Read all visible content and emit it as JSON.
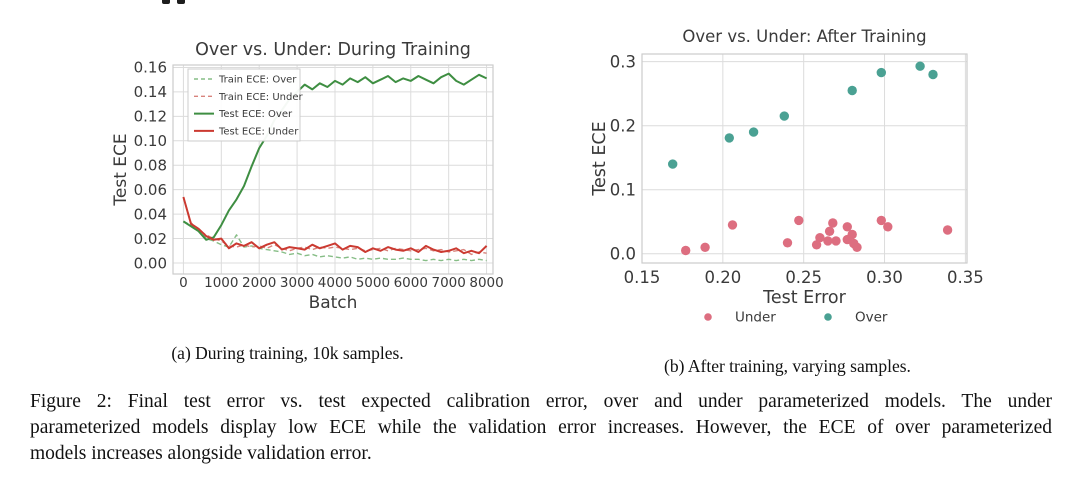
{
  "figure": {
    "caption_a": "(a) During training, 10k samples.",
    "caption_b": "(b) After training, varying samples.",
    "caption_line1": "Figure 2: Final test error vs. test expected calibration error, over and under parameterized models. The under",
    "caption_line2": "parameterized models display low ECE while the validation error increases. However, the ECE of over parameterized",
    "caption_line3": "models increases alongside validation error."
  },
  "colors": {
    "test_over_green": "#3e8e42",
    "train_over_green": "#86bd86",
    "test_under_red": "#cb3a31",
    "train_under_red": "#d8837c",
    "scatter_under_pink": "#dd6e80",
    "scatter_over_teal": "#4aa193",
    "grid": "#dcdcdc",
    "spine": "#cccccc",
    "text": "#3a3a3a"
  },
  "chart_data": [
    {
      "type": "line",
      "title": "Over vs. Under: During Training",
      "xlabel": "Batch",
      "ylabel": "Test ECE",
      "xlim": [
        -275,
        8170
      ],
      "ylim": [
        -0.009,
        0.162
      ],
      "grid": true,
      "legend_position": "upper left",
      "x_ticks": [
        0,
        1000,
        2000,
        3000,
        4000,
        5000,
        6000,
        7000,
        8000
      ],
      "x_tick_labels": [
        "0",
        "1000",
        "2000",
        "3000",
        "4000",
        "5000",
        "6000",
        "7000",
        "8000"
      ],
      "y_ticks": [
        0.0,
        0.02,
        0.04,
        0.06,
        0.08,
        0.1,
        0.12,
        0.14,
        0.16
      ],
      "y_tick_labels": [
        "0.00",
        "0.02",
        "0.04",
        "0.06",
        "0.08",
        "0.10",
        "0.12",
        "0.14",
        "0.16"
      ],
      "x": [
        0,
        200,
        400,
        600,
        800,
        1000,
        1200,
        1400,
        1600,
        1800,
        2000,
        2200,
        2400,
        2600,
        2800,
        3000,
        3200,
        3400,
        3600,
        3800,
        4000,
        4200,
        4400,
        4600,
        4800,
        5000,
        5200,
        5400,
        5600,
        5800,
        6000,
        6200,
        6400,
        6600,
        6800,
        7000,
        7200,
        7400,
        7600,
        7800,
        8000
      ],
      "series": [
        {
          "name": "Train ECE: Over",
          "color": "#86bd86",
          "dash": true,
          "values": [
            0.034,
            0.031,
            0.026,
            0.02,
            0.018,
            0.015,
            0.013,
            0.023,
            0.013,
            0.014,
            0.012,
            0.011,
            0.01,
            0.009,
            0.007,
            0.008,
            0.006,
            0.007,
            0.005,
            0.006,
            0.005,
            0.004,
            0.005,
            0.003,
            0.004,
            0.003,
            0.004,
            0.003,
            0.003,
            0.004,
            0.003,
            0.003,
            0.002,
            0.003,
            0.002,
            0.003,
            0.002,
            0.003,
            0.002,
            0.003,
            0.002
          ]
        },
        {
          "name": "Train ECE: Under",
          "color": "#d8837c",
          "dash": true,
          "values": [
            0.054,
            0.033,
            0.027,
            0.023,
            0.02,
            0.018,
            0.014,
            0.013,
            0.015,
            0.013,
            0.014,
            0.012,
            0.015,
            0.012,
            0.01,
            0.012,
            0.013,
            0.011,
            0.013,
            0.012,
            0.013,
            0.012,
            0.011,
            0.012,
            0.01,
            0.011,
            0.012,
            0.01,
            0.012,
            0.011,
            0.01,
            0.011,
            0.012,
            0.01,
            0.011,
            0.009,
            0.01,
            0.011,
            0.007,
            0.009,
            0.008
          ]
        },
        {
          "name": "Test ECE: Over",
          "color": "#3e8e42",
          "dash": false,
          "values": [
            0.034,
            0.03,
            0.026,
            0.019,
            0.021,
            0.031,
            0.043,
            0.052,
            0.063,
            0.079,
            0.094,
            0.104,
            0.117,
            0.125,
            0.134,
            0.14,
            0.146,
            0.142,
            0.147,
            0.144,
            0.149,
            0.146,
            0.151,
            0.148,
            0.152,
            0.147,
            0.15,
            0.153,
            0.148,
            0.151,
            0.149,
            0.153,
            0.15,
            0.147,
            0.152,
            0.155,
            0.149,
            0.146,
            0.15,
            0.154,
            0.151
          ]
        },
        {
          "name": "Test ECE: Under",
          "color": "#cb3a31",
          "dash": false,
          "values": [
            0.054,
            0.032,
            0.028,
            0.022,
            0.019,
            0.02,
            0.012,
            0.016,
            0.014,
            0.017,
            0.012,
            0.015,
            0.017,
            0.011,
            0.013,
            0.012,
            0.011,
            0.015,
            0.012,
            0.014,
            0.016,
            0.011,
            0.014,
            0.013,
            0.009,
            0.012,
            0.01,
            0.013,
            0.011,
            0.01,
            0.012,
            0.009,
            0.014,
            0.011,
            0.009,
            0.01,
            0.012,
            0.008,
            0.01,
            0.008,
            0.014
          ]
        }
      ]
    },
    {
      "type": "scatter",
      "title": "Over vs. Under: After Training",
      "xlabel": "Test Error",
      "ylabel": "Test ECE",
      "xlim": [
        0.15,
        0.351
      ],
      "ylim": [
        -0.0145,
        0.312
      ],
      "grid": true,
      "legend_position": "below",
      "x_ticks": [
        0.15,
        0.2,
        0.25,
        0.3,
        0.35
      ],
      "x_tick_labels": [
        "0.15",
        "0.20",
        "0.25",
        "0.30",
        "0.35"
      ],
      "y_ticks": [
        0.0,
        0.1,
        0.2,
        0.3
      ],
      "y_tick_labels": [
        "0.0",
        "0.1",
        "0.2",
        "0.3"
      ],
      "series": [
        {
          "name": "Under",
          "color": "#dd6e80",
          "points": [
            [
              0.177,
              0.005
            ],
            [
              0.189,
              0.01
            ],
            [
              0.206,
              0.045
            ],
            [
              0.24,
              0.017
            ],
            [
              0.247,
              0.052
            ],
            [
              0.258,
              0.014
            ],
            [
              0.26,
              0.025
            ],
            [
              0.265,
              0.02
            ],
            [
              0.266,
              0.035
            ],
            [
              0.268,
              0.048
            ],
            [
              0.27,
              0.02
            ],
            [
              0.277,
              0.042
            ],
            [
              0.277,
              0.022
            ],
            [
              0.28,
              0.03
            ],
            [
              0.281,
              0.016
            ],
            [
              0.283,
              0.01
            ],
            [
              0.298,
              0.052
            ],
            [
              0.302,
              0.042
            ],
            [
              0.339,
              0.037
            ]
          ]
        },
        {
          "name": "Over",
          "color": "#4aa193",
          "points": [
            [
              0.169,
              0.14
            ],
            [
              0.204,
              0.181
            ],
            [
              0.219,
              0.19
            ],
            [
              0.238,
              0.215
            ],
            [
              0.28,
              0.255
            ],
            [
              0.298,
              0.283
            ],
            [
              0.322,
              0.293
            ],
            [
              0.33,
              0.28
            ]
          ]
        }
      ]
    }
  ]
}
